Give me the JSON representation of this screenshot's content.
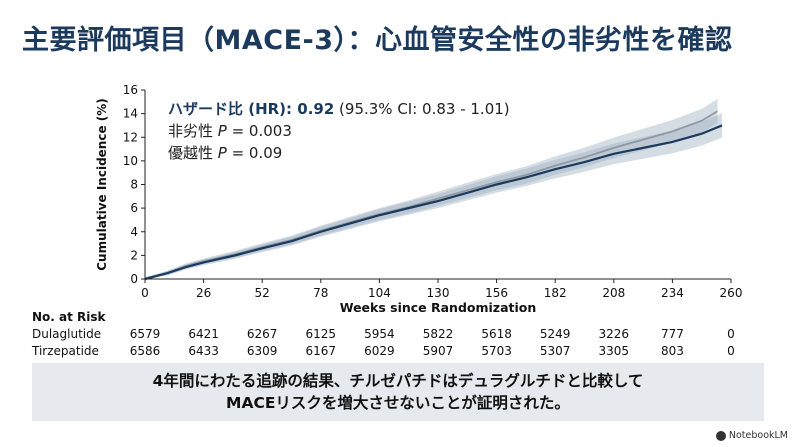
{
  "title": "主要評価項目（MACE-3）：心血管安全性の非劣性を確認",
  "annotation": {
    "hr_label": "ハザード比 (HR): ",
    "hr_value": "0.92",
    "hr_ci": " (95.3% CI: 0.83 - 1.01)",
    "noninf_label": "非劣性 ",
    "noninf_p": "P",
    "noninf_val": " = 0.003",
    "sup_label": "優越性 ",
    "sup_p": "P",
    "sup_val": " = 0.09"
  },
  "risk_table": {
    "header": "No. at Risk",
    "rows": [
      {
        "name": "Dulaglutide",
        "values": [
          "6579",
          "6421",
          "6267",
          "6125",
          "5954",
          "5822",
          "5618",
          "5249",
          "3226",
          "777",
          "0"
        ]
      },
      {
        "name": "Tirzepatide",
        "values": [
          "6586",
          "6433",
          "6309",
          "6167",
          "6029",
          "5907",
          "5703",
          "5307",
          "3305",
          "803",
          "0"
        ]
      }
    ]
  },
  "footer": {
    "line1": "4年間にわたる追跡の結果、チルゼパチドはデュラグルチドと比較して",
    "line2": "MACEリスクを増大させないことが証明された。"
  },
  "logo": "NotebookLM",
  "chart_data": {
    "type": "line",
    "xlabel": "Weeks since Randomization",
    "ylabel": "Cumulative Incidence (%)",
    "xlim": [
      0,
      260
    ],
    "ylim": [
      0,
      16
    ],
    "xticks": [
      0,
      26,
      52,
      78,
      104,
      130,
      156,
      182,
      208,
      234,
      260
    ],
    "yticks": [
      0,
      2,
      4,
      6,
      8,
      10,
      12,
      14,
      16
    ],
    "grid": false,
    "colors": {
      "dulaglutide": "#8f98a3",
      "tirzepatide": "#1c3a5e",
      "band": "#9fb1c4"
    },
    "series": [
      {
        "key": "dulaglutide",
        "x": [
          0,
          10,
          18,
          26,
          40,
          52,
          65,
          78,
          91,
          104,
          117,
          130,
          143,
          156,
          169,
          182,
          195,
          208,
          221,
          234,
          247,
          254
        ],
        "y": [
          0,
          0.5,
          1.1,
          1.5,
          2.1,
          2.7,
          3.3,
          4.1,
          4.8,
          5.5,
          6.1,
          6.8,
          7.5,
          8.2,
          8.8,
          9.6,
          10.3,
          11.1,
          11.8,
          12.5,
          13.4,
          14.2
        ]
      },
      {
        "key": "tirzepatide",
        "x": [
          0,
          10,
          18,
          26,
          40,
          52,
          65,
          78,
          91,
          104,
          117,
          130,
          143,
          156,
          169,
          182,
          195,
          208,
          221,
          234,
          247,
          256
        ],
        "y": [
          0,
          0.5,
          1.0,
          1.4,
          2.0,
          2.6,
          3.2,
          4.0,
          4.7,
          5.4,
          6.0,
          6.6,
          7.3,
          8.0,
          8.6,
          9.3,
          9.9,
          10.6,
          11.1,
          11.6,
          12.3,
          13.0
        ]
      }
    ]
  }
}
